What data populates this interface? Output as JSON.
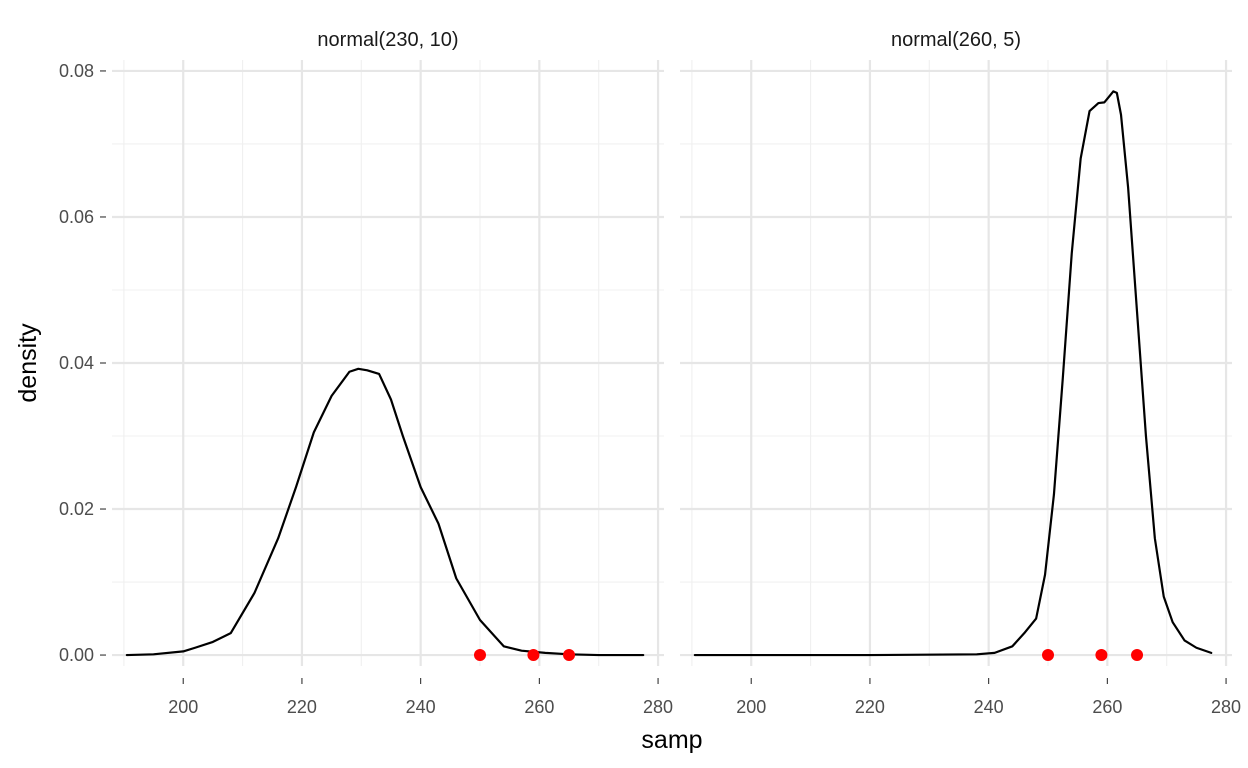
{
  "chart_data": {
    "type": "line",
    "xlabel": "samp",
    "ylabel": "density",
    "xlim": [
      188,
      281
    ],
    "ylim": [
      -0.0015,
      0.0815
    ],
    "x_ticks": [
      200,
      220,
      240,
      260,
      280
    ],
    "x_tick_labels": [
      "200",
      "220",
      "240",
      "260",
      "280"
    ],
    "y_ticks": [
      0,
      0.02,
      0.04,
      0.06,
      0.08
    ],
    "y_tick_labels": [
      "0.00",
      "0.02",
      "0.04",
      "0.06",
      "0.08"
    ],
    "grid": true,
    "points_color": "#ff0000",
    "line_color": "#000000",
    "facets": [
      {
        "title": "normal(230, 10)",
        "series": [
          {
            "x": [
              190.5,
              195,
              200,
              202,
              205,
              208,
              212,
              216,
              219,
              222,
              225,
              228,
              229.5,
              231,
              233,
              235,
              237,
              240,
              243,
              246,
              250,
              254,
              257,
              261,
              265,
              270,
              277.5
            ],
            "y": [
              0.0,
              0.0001,
              0.0005,
              0.001,
              0.0018,
              0.003,
              0.0085,
              0.016,
              0.023,
              0.0305,
              0.0355,
              0.0388,
              0.0392,
              0.039,
              0.0385,
              0.035,
              0.03,
              0.023,
              0.018,
              0.0105,
              0.0048,
              0.0012,
              0.0006,
              0.0003,
              0.0001,
              0.0,
              0.0
            ]
          }
        ],
        "points": {
          "x": [
            250,
            259,
            265
          ],
          "y": [
            0,
            0,
            0
          ]
        }
      },
      {
        "title": "normal(260, 5)",
        "series": [
          {
            "x": [
              190.5,
              220,
              238,
              241,
              244,
              246,
              248,
              249.5,
              251,
              252.5,
              254,
              255.5,
              257,
              258.5,
              259.5,
              260.3,
              261,
              261.6,
              262.3,
              263.5,
              265,
              266.5,
              268,
              269.5,
              271,
              273,
              275,
              277.5
            ],
            "y": [
              0.0,
              0.0,
              0.0001,
              0.0003,
              0.0012,
              0.003,
              0.005,
              0.011,
              0.022,
              0.038,
              0.055,
              0.068,
              0.0745,
              0.0756,
              0.0757,
              0.0765,
              0.0772,
              0.077,
              0.074,
              0.064,
              0.047,
              0.03,
              0.016,
              0.008,
              0.0045,
              0.002,
              0.001,
              0.0003
            ]
          }
        ],
        "points": {
          "x": [
            250,
            259,
            265
          ],
          "y": [
            0,
            0,
            0
          ]
        }
      }
    ]
  }
}
